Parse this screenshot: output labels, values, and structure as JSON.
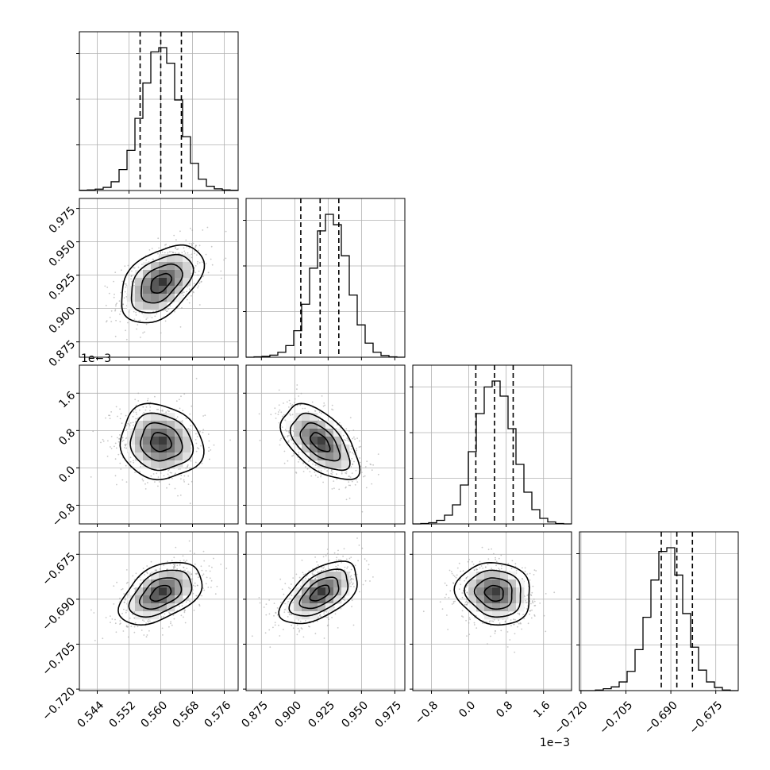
{
  "figure": {
    "type": "corner-plot",
    "panel_color": "#000000",
    "grid_color": "#b0b0b0",
    "scatter_color": "#9a9a9a"
  },
  "chart_data": {
    "type": "corner",
    "parameters": [
      {
        "range": [
          0.5395,
          0.5795
        ],
        "ticks": [
          0.544,
          0.552,
          0.56,
          0.568,
          0.576
        ],
        "tick_labels": [
          "0.544",
          "0.552",
          "0.560",
          "0.568",
          "0.576"
        ],
        "offset_label": "",
        "quantiles": [
          0.5548,
          0.56,
          0.5652
        ],
        "std": 0.0052
      },
      {
        "range": [
          0.8635,
          0.9825
        ],
        "ticks": [
          0.875,
          0.9,
          0.925,
          0.95,
          0.975
        ],
        "tick_labels": [
          "0.875",
          "0.900",
          "0.925",
          "0.950",
          "0.975"
        ],
        "offset_label": "",
        "quantiles": [
          0.9045,
          0.919,
          0.933
        ],
        "std": 0.0145
      },
      {
        "range": [
          -1.2,
          2.2
        ],
        "ticks": [
          -0.8,
          0.0,
          0.8,
          1.6
        ],
        "tick_labels": [
          "−0.8",
          "0.0",
          "0.8",
          "1.6"
        ],
        "offset_label": "1e−3",
        "quantiles": [
          0.15,
          0.55,
          0.95
        ],
        "std": 0.4
      },
      {
        "range": [
          -0.7205,
          -0.6675
        ],
        "ticks": [
          -0.72,
          -0.705,
          -0.69,
          -0.675
        ],
        "tick_labels": [
          "−0.720",
          "−0.705",
          "−0.690",
          "−0.675"
        ],
        "offset_label": "",
        "quantiles": [
          -0.6932,
          -0.688,
          -0.6828
        ],
        "std": 0.0052
      }
    ],
    "histograms": [
      {
        "bins": 20,
        "counts": [
          1,
          2,
          5,
          11,
          31,
          74,
          142,
          255,
          380,
          490,
          505,
          450,
          320,
          190,
          96,
          40,
          15,
          6,
          2,
          1
        ]
      },
      {
        "bins": 20,
        "counts": [
          0,
          1,
          2,
          5,
          12,
          28,
          64,
          128,
          215,
          305,
          345,
          320,
          245,
          150,
          78,
          34,
          12,
          4,
          1,
          0
        ]
      },
      {
        "bins": 20,
        "counts": [
          0,
          1,
          3,
          9,
          22,
          48,
          98,
          182,
          278,
          345,
          360,
          322,
          240,
          150,
          80,
          36,
          14,
          5,
          1,
          0
        ]
      },
      {
        "bins": 20,
        "counts": [
          0,
          0,
          1,
          3,
          6,
          14,
          31,
          66,
          118,
          178,
          224,
          230,
          186,
          124,
          70,
          33,
          14,
          5,
          1,
          0
        ]
      }
    ],
    "correlations": {
      "1_0": 0.45,
      "2_0": -0.1,
      "2_1": -0.55,
      "3_0": 0.45,
      "3_1": 0.55,
      "3_2": -0.1
    },
    "contour_levels_sigma": [
      0.5,
      1.0,
      1.5,
      2.0
    ],
    "grid": true
  }
}
